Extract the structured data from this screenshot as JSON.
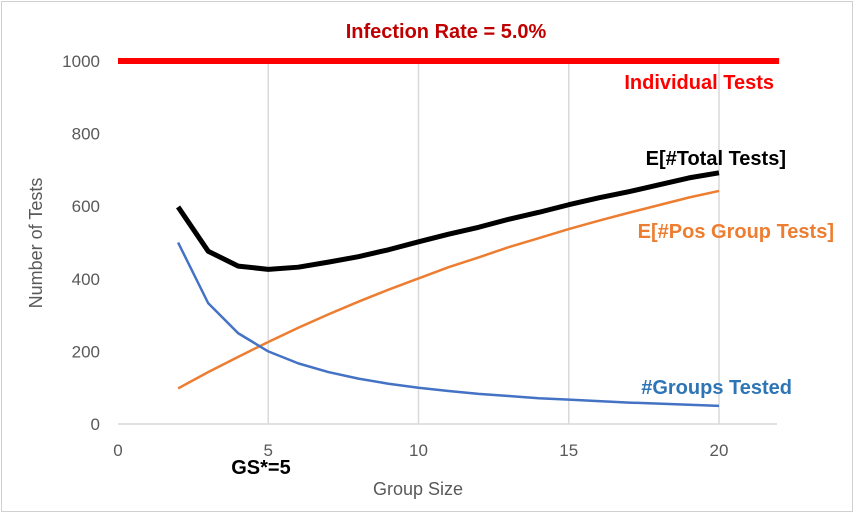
{
  "chart_data": {
    "type": "line",
    "title": "Infection Rate =  5.0%",
    "xlabel": "Group Size",
    "ylabel": "Number of Tests",
    "xlim": [
      0,
      20
    ],
    "ylim": [
      0,
      1000
    ],
    "x_ticks": [
      "0",
      "5",
      "10",
      "15",
      "20"
    ],
    "y_ticks": [
      "0",
      "200",
      "400",
      "600",
      "800",
      "1000"
    ],
    "grid": "vertical",
    "annotation": "GS*=5",
    "colors": {
      "title": "#c00000",
      "individual": "#ff0000",
      "total": "#000000",
      "pos": "#ed7d31",
      "groups": "#4472c4",
      "grid": "#d9d9d9"
    },
    "series": [
      {
        "name": "Individual Tests",
        "x": [
          0,
          22
        ],
        "y": [
          1000,
          1000
        ]
      },
      {
        "name": "E[#Total Tests]",
        "x": [
          2,
          3,
          4,
          5,
          6,
          7,
          8,
          9,
          10,
          11,
          12,
          13,
          14,
          15,
          16,
          17,
          18,
          19,
          20
        ],
        "y": [
          598,
          476,
          435,
          426,
          432,
          446,
          461,
          480,
          502,
          523,
          542,
          564,
          583,
          604,
          623,
          640,
          659,
          678,
          692
        ]
      },
      {
        "name": "E[#Pos Group Tests]",
        "x": [
          2,
          3,
          4,
          5,
          6,
          7,
          8,
          9,
          10,
          11,
          12,
          13,
          14,
          15,
          16,
          17,
          18,
          19,
          20
        ],
        "y": [
          98,
          143,
          185,
          226,
          265,
          302,
          337,
          370,
          401,
          432,
          459,
          487,
          512,
          537,
          560,
          582,
          603,
          624,
          642
        ]
      },
      {
        "name": "#Groups Tested",
        "x": [
          2,
          3,
          4,
          5,
          6,
          7,
          8,
          9,
          10,
          11,
          12,
          13,
          14,
          15,
          16,
          17,
          18,
          19,
          20
        ],
        "y": [
          500,
          333,
          250,
          200,
          167,
          143,
          125,
          111,
          100,
          91,
          83,
          77,
          71,
          67,
          63,
          59,
          56,
          53,
          50
        ]
      }
    ]
  }
}
